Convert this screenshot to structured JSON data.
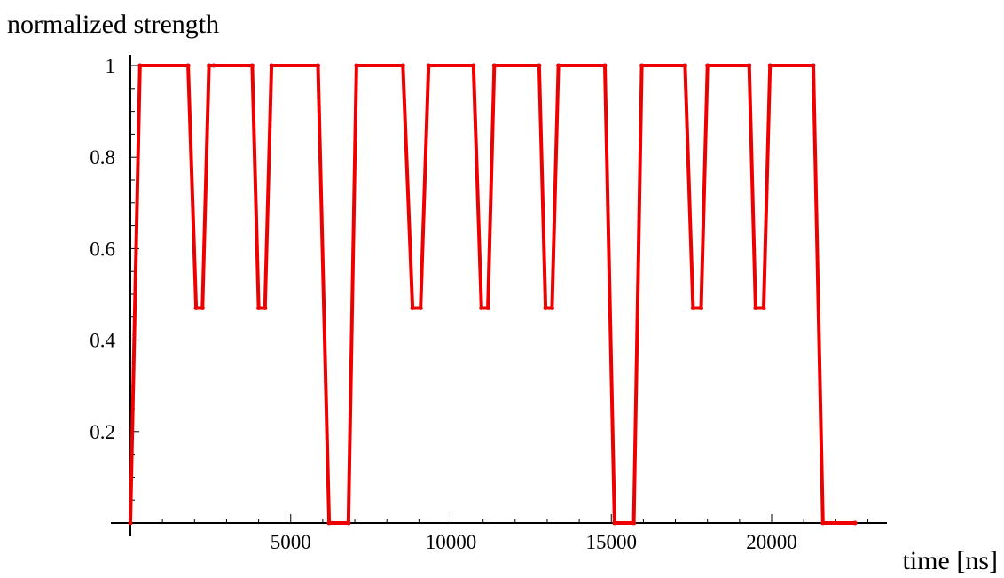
{
  "chart_data": {
    "type": "line",
    "title": "",
    "xlabel": "time [ns]",
    "ylabel": "normalized strength",
    "xlim": [
      0,
      23500
    ],
    "ylim": [
      0,
      1.02
    ],
    "grid": false,
    "legend": "none",
    "xticks": [
      5000,
      10000,
      15000,
      20000
    ],
    "xtick_labels": [
      "5000",
      "10000",
      "15000",
      "20000"
    ],
    "yticks": [
      0.2,
      0.4,
      0.6,
      0.8,
      1
    ],
    "ytick_labels": [
      "0.2",
      "0.4",
      "0.6",
      "0.8",
      "1"
    ],
    "series": [
      {
        "color": "#ee0000",
        "x": [
          0,
          300,
          1800,
          2050,
          2250,
          2450,
          2600,
          3800,
          4000,
          4200,
          4400,
          5850,
          6200,
          6800,
          7050,
          8500,
          8800,
          9050,
          9300,
          10700,
          10950,
          11150,
          11350,
          12750,
          12950,
          13150,
          13350,
          14800,
          15100,
          15700,
          15950,
          17300,
          17550,
          17800,
          18000,
          19300,
          19500,
          19750,
          19950,
          21300,
          21600,
          22600
        ],
        "y": [
          0,
          1,
          1,
          0.47,
          0.47,
          1,
          1,
          1,
          0.47,
          0.47,
          1,
          1,
          0,
          0,
          1,
          1,
          0.47,
          0.47,
          1,
          1,
          0.47,
          0.47,
          1,
          1,
          0.47,
          0.47,
          1,
          1,
          0,
          0,
          1,
          1,
          0.47,
          0.47,
          1,
          1,
          0.47,
          0.47,
          1,
          1,
          0,
          0
        ]
      }
    ]
  }
}
